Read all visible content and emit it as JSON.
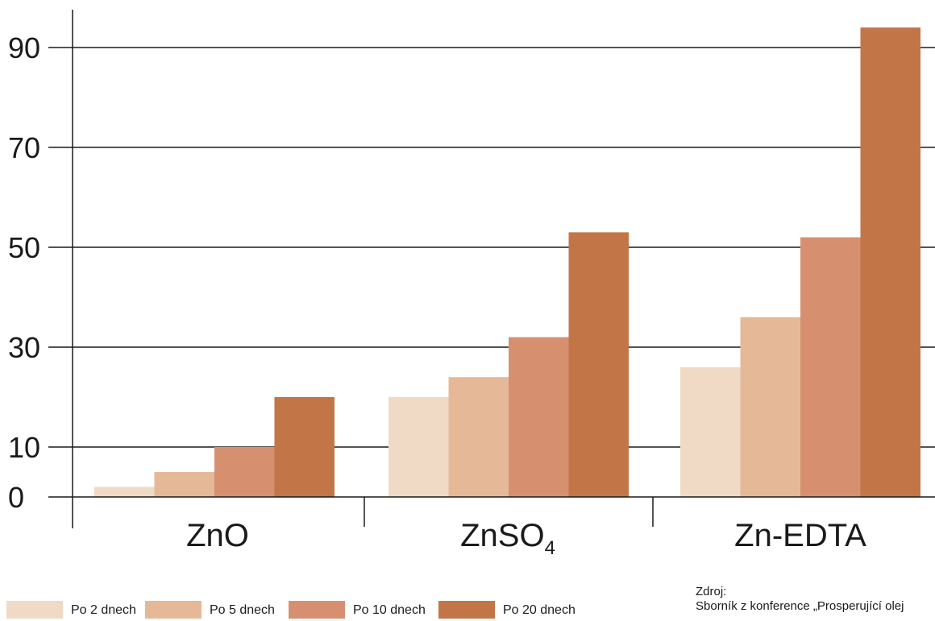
{
  "chart_data": {
    "type": "bar",
    "categories": [
      "ZnO",
      "ZnSO4",
      "Zn-EDTA"
    ],
    "category_labels": [
      {
        "text": "ZnO",
        "sub": ""
      },
      {
        "text": "ZnSO",
        "sub": "4"
      },
      {
        "text": "Zn-EDTA",
        "sub": ""
      }
    ],
    "series": [
      {
        "name": "Po 2 dnech",
        "values": [
          2,
          20,
          26
        ]
      },
      {
        "name": "Po 5 dnech",
        "values": [
          5,
          24,
          36
        ]
      },
      {
        "name": "Po 10 dnech",
        "values": [
          10,
          32,
          52
        ]
      },
      {
        "name": "Po 20 dnech",
        "values": [
          20,
          53,
          94
        ]
      }
    ],
    "colors": [
      "#f0d9c5",
      "#e5b998",
      "#d69070",
      "#c27547"
    ],
    "yticks": [
      0,
      10,
      30,
      50,
      70,
      90
    ],
    "ylim": [
      0,
      94
    ],
    "grid": true,
    "legend_position": "bottom-left",
    "title": "",
    "xlabel": "",
    "ylabel": ""
  },
  "source": {
    "heading": "Zdroj:",
    "text": "Sborník z konference „Prosperující olej"
  }
}
